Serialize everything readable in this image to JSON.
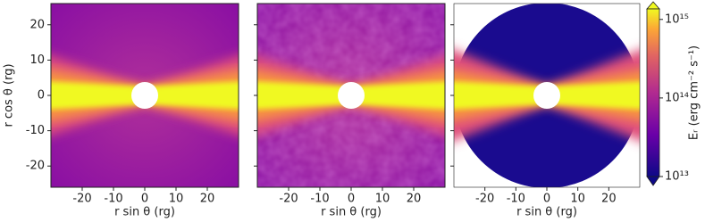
{
  "chart_data": [
    {
      "type": "heatmap",
      "style": "full",
      "xlabel": "r sin θ (rg)",
      "ylabel": "r cos θ (rg)",
      "xlim": [
        -30,
        30
      ],
      "ylim": [
        -26,
        26
      ],
      "xticks": [
        -20,
        -10,
        0,
        10,
        20
      ],
      "yticks": [
        -20,
        -10,
        0,
        10,
        20
      ],
      "ytick_labels": true
    },
    {
      "type": "heatmap",
      "style": "noisy",
      "xlabel": "r sin θ (rg)",
      "xlim": [
        -30,
        30
      ],
      "ylim": [
        -26,
        26
      ],
      "xticks": [
        -20,
        -10,
        0,
        10,
        20
      ],
      "yticks": [
        -20,
        -10,
        0,
        10,
        20
      ],
      "ytick_labels": false
    },
    {
      "type": "heatmap",
      "style": "circle",
      "xlabel": "r sin θ (rg)",
      "xlim": [
        -30,
        30
      ],
      "ylim": [
        -26,
        26
      ],
      "xticks": [
        -20,
        -10,
        0,
        10,
        20
      ],
      "yticks": [
        -20,
        -10,
        0,
        10,
        20
      ],
      "ytick_labels": false
    }
  ],
  "colorbar": {
    "label": "Eᵣ (erg cm⁻² s⁻¹)",
    "scale": "log",
    "lim": [
      10000000000000.0,
      1360000000000000.0
    ],
    "ticks": [
      {
        "value": 10000000000000.0,
        "label": "10¹³"
      },
      {
        "value": 100000000000000.0,
        "label": "10¹⁴"
      },
      {
        "value": 1000000000000000.0,
        "label": "10¹⁵"
      }
    ]
  }
}
